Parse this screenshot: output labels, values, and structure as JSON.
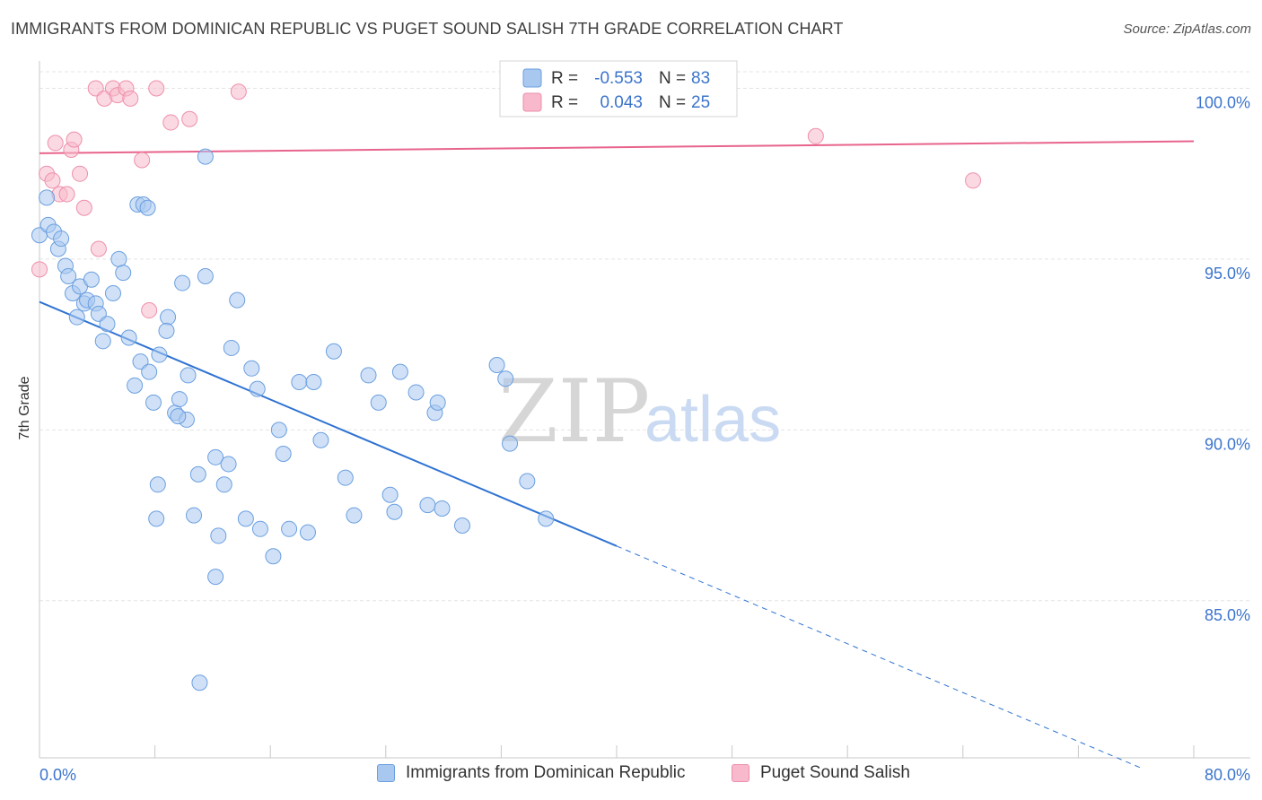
{
  "header": {
    "title": "IMMIGRANTS FROM DOMINICAN REPUBLIC VS PUGET SOUND SALISH 7TH GRADE CORRELATION CHART",
    "source": "Source: ZipAtlas.com"
  },
  "watermark": {
    "zip": "ZIP",
    "atlas": "atlas"
  },
  "legend_top": {
    "rows": [
      {
        "r_label": "R =",
        "r_value": "-0.553",
        "n_label": "N =",
        "n_value": "83"
      },
      {
        "r_label": "R =",
        "r_value": "0.043",
        "n_label": "N =",
        "n_value": "25"
      }
    ]
  },
  "legend_bottom": {
    "items": [
      {
        "label": "Immigrants from Dominican Republic"
      },
      {
        "label": "Puget Sound Salish"
      }
    ]
  },
  "colors": {
    "blue_fill": "#a9c8f0",
    "blue_stroke": "#6a9fe0",
    "blue_line": "#2f73d2",
    "pink_fill": "#f7b9cb",
    "pink_stroke": "#ee8fab",
    "pink_line": "#e8648c",
    "axis_text": "#3b74cc",
    "grid": "#e4e4e4"
  },
  "chart_data": {
    "type": "scatter",
    "title": "IMMIGRANTS FROM DOMINICAN REPUBLIC VS PUGET SOUND SALISH 7TH GRADE CORRELATION CHART",
    "xlabel": "",
    "ylabel": "7th Grade",
    "xlim": [
      0,
      80
    ],
    "ylim": [
      80.4,
      100.8
    ],
    "x_tick_labels": [
      "0.0%",
      "80.0%"
    ],
    "y_ticks": [
      85,
      90,
      95,
      100
    ],
    "y_tick_labels": [
      "85.0%",
      "90.0%",
      "95.0%",
      "100.0%"
    ],
    "series": [
      {
        "name": "Immigrants from Dominican Republic",
        "r": -0.553,
        "n": 83,
        "trend": {
          "x0": 0,
          "y0": 93.75,
          "x1": 40,
          "y1": 86.6,
          "dash_to_x": 80,
          "dash_to_y": 79.45
        },
        "points": [
          [
            0,
            95.7
          ],
          [
            0.5,
            96.8
          ],
          [
            0.6,
            96.0
          ],
          [
            1.0,
            95.8
          ],
          [
            1.3,
            95.3
          ],
          [
            1.5,
            95.6
          ],
          [
            1.8,
            94.8
          ],
          [
            2.0,
            94.5
          ],
          [
            2.3,
            94.0
          ],
          [
            2.6,
            93.3
          ],
          [
            2.8,
            94.2
          ],
          [
            3.1,
            93.7
          ],
          [
            3.3,
            93.8
          ],
          [
            3.6,
            94.4
          ],
          [
            3.9,
            93.7
          ],
          [
            4.1,
            93.4
          ],
          [
            4.4,
            92.6
          ],
          [
            4.7,
            93.1
          ],
          [
            5.1,
            94.0
          ],
          [
            5.5,
            95.0
          ],
          [
            5.8,
            94.6
          ],
          [
            6.2,
            92.7
          ],
          [
            6.6,
            91.3
          ],
          [
            7.0,
            92.0
          ],
          [
            6.8,
            96.6
          ],
          [
            7.2,
            96.6
          ],
          [
            7.6,
            91.7
          ],
          [
            7.5,
            96.5
          ],
          [
            7.9,
            90.8
          ],
          [
            8.3,
            92.2
          ],
          [
            8.9,
            93.3
          ],
          [
            8.8,
            92.9
          ],
          [
            9.4,
            90.5
          ],
          [
            9.7,
            90.9
          ],
          [
            9.9,
            94.3
          ],
          [
            10.2,
            90.3
          ],
          [
            10.3,
            91.6
          ],
          [
            11.0,
            88.7
          ],
          [
            11.5,
            98.0
          ],
          [
            11.5,
            94.5
          ],
          [
            12.2,
            89.2
          ],
          [
            12.8,
            88.4
          ],
          [
            13.1,
            89.0
          ],
          [
            13.3,
            92.4
          ],
          [
            13.7,
            93.8
          ],
          [
            14.3,
            87.4
          ],
          [
            14.7,
            91.8
          ],
          [
            15.1,
            91.2
          ],
          [
            15.3,
            87.1
          ],
          [
            16.2,
            86.3
          ],
          [
            16.6,
            90.0
          ],
          [
            16.9,
            89.3
          ],
          [
            17.3,
            87.1
          ],
          [
            18.0,
            91.4
          ],
          [
            18.6,
            87.0
          ],
          [
            19.0,
            91.4
          ],
          [
            19.5,
            89.7
          ],
          [
            20.4,
            92.3
          ],
          [
            21.2,
            88.6
          ],
          [
            21.8,
            87.5
          ],
          [
            22.8,
            91.6
          ],
          [
            23.5,
            90.8
          ],
          [
            24.3,
            88.1
          ],
          [
            24.6,
            87.6
          ],
          [
            25.0,
            91.7
          ],
          [
            26.1,
            91.1
          ],
          [
            26.9,
            87.8
          ],
          [
            27.4,
            90.5
          ],
          [
            27.6,
            90.8
          ],
          [
            27.9,
            87.7
          ],
          [
            29.3,
            87.2
          ],
          [
            31.7,
            91.9
          ],
          [
            32.3,
            91.5
          ],
          [
            32.6,
            89.6
          ],
          [
            33.8,
            88.5
          ],
          [
            35.1,
            87.4
          ],
          [
            8.2,
            88.4
          ],
          [
            8.1,
            87.4
          ],
          [
            10.7,
            87.5
          ],
          [
            12.4,
            86.9
          ],
          [
            12.2,
            85.7
          ],
          [
            11.1,
            82.6
          ],
          [
            9.6,
            90.4
          ]
        ]
      },
      {
        "name": "Puget Sound Salish",
        "r": 0.043,
        "n": 25,
        "trend": {
          "x0": 0,
          "y0": 98.1,
          "x1": 80,
          "y1": 98.45
        },
        "points": [
          [
            0,
            94.7
          ],
          [
            0.5,
            97.5
          ],
          [
            0.9,
            97.3
          ],
          [
            1.1,
            98.4
          ],
          [
            1.4,
            96.9
          ],
          [
            1.9,
            96.9
          ],
          [
            2.2,
            98.2
          ],
          [
            2.4,
            98.5
          ],
          [
            2.8,
            97.5
          ],
          [
            3.1,
            96.5
          ],
          [
            4.1,
            95.3
          ],
          [
            3.9,
            100.0
          ],
          [
            4.5,
            99.7
          ],
          [
            5.1,
            100.0
          ],
          [
            5.4,
            99.8
          ],
          [
            6.0,
            100.0
          ],
          [
            6.3,
            99.7
          ],
          [
            7.1,
            97.9
          ],
          [
            7.6,
            93.5
          ],
          [
            8.1,
            100.0
          ],
          [
            9.1,
            99.0
          ],
          [
            10.4,
            99.1
          ],
          [
            13.8,
            99.9
          ],
          [
            53.8,
            98.6
          ],
          [
            64.7,
            97.3
          ]
        ]
      }
    ]
  }
}
